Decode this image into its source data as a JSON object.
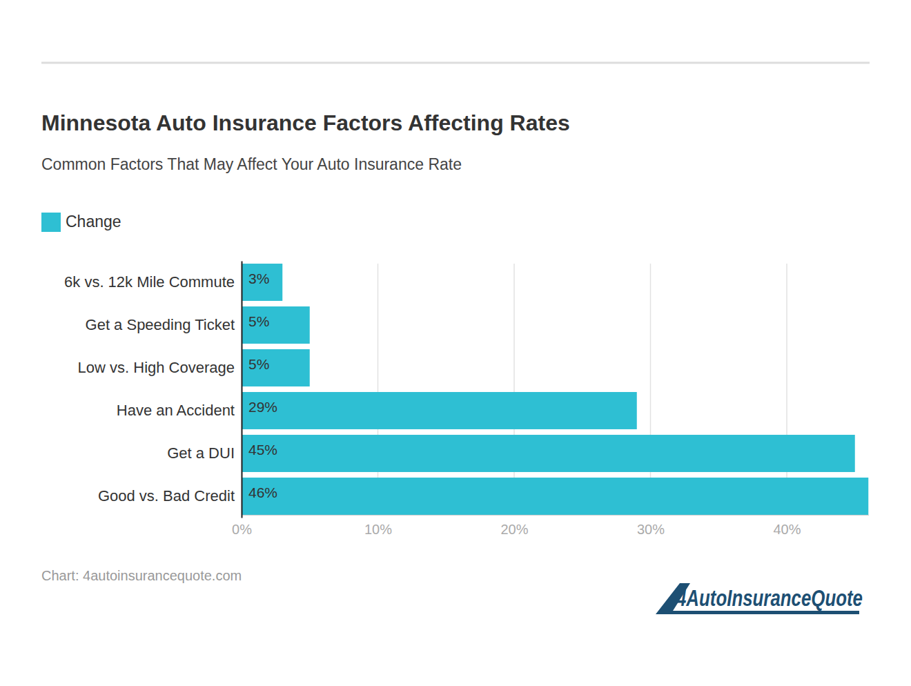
{
  "chart_data": {
    "type": "bar",
    "title": "Minnesota Auto Insurance Factors Affecting Rates",
    "subtitle": "Common Factors That May Affect Your Auto Insurance Rate",
    "categories": [
      "6k vs. 12k Mile Commute",
      "Get a Speeding Ticket",
      "Low vs. High Coverage",
      "Have an Accident",
      "Get a DUI",
      "Good vs. Bad Credit"
    ],
    "series": [
      {
        "name": "Change",
        "color": "#2ebfd3",
        "values": [
          3,
          5,
          5,
          29,
          45,
          46
        ],
        "value_labels": [
          "3%",
          "5%",
          "5%",
          "29%",
          "45%",
          "46%"
        ]
      }
    ],
    "orientation": "horizontal",
    "xlim": [
      0,
      46
    ],
    "xticks": [
      {
        "value": 0,
        "label": "0%"
      },
      {
        "value": 10,
        "label": "10%"
      },
      {
        "value": 20,
        "label": "20%"
      },
      {
        "value": 30,
        "label": "30%"
      },
      {
        "value": 40,
        "label": "40%"
      }
    ],
    "grid": true,
    "legend": "top-left",
    "data_labels": true,
    "source": "Chart: 4autoinsurancequote.com",
    "logo": "4AutoInsuranceQuote"
  }
}
